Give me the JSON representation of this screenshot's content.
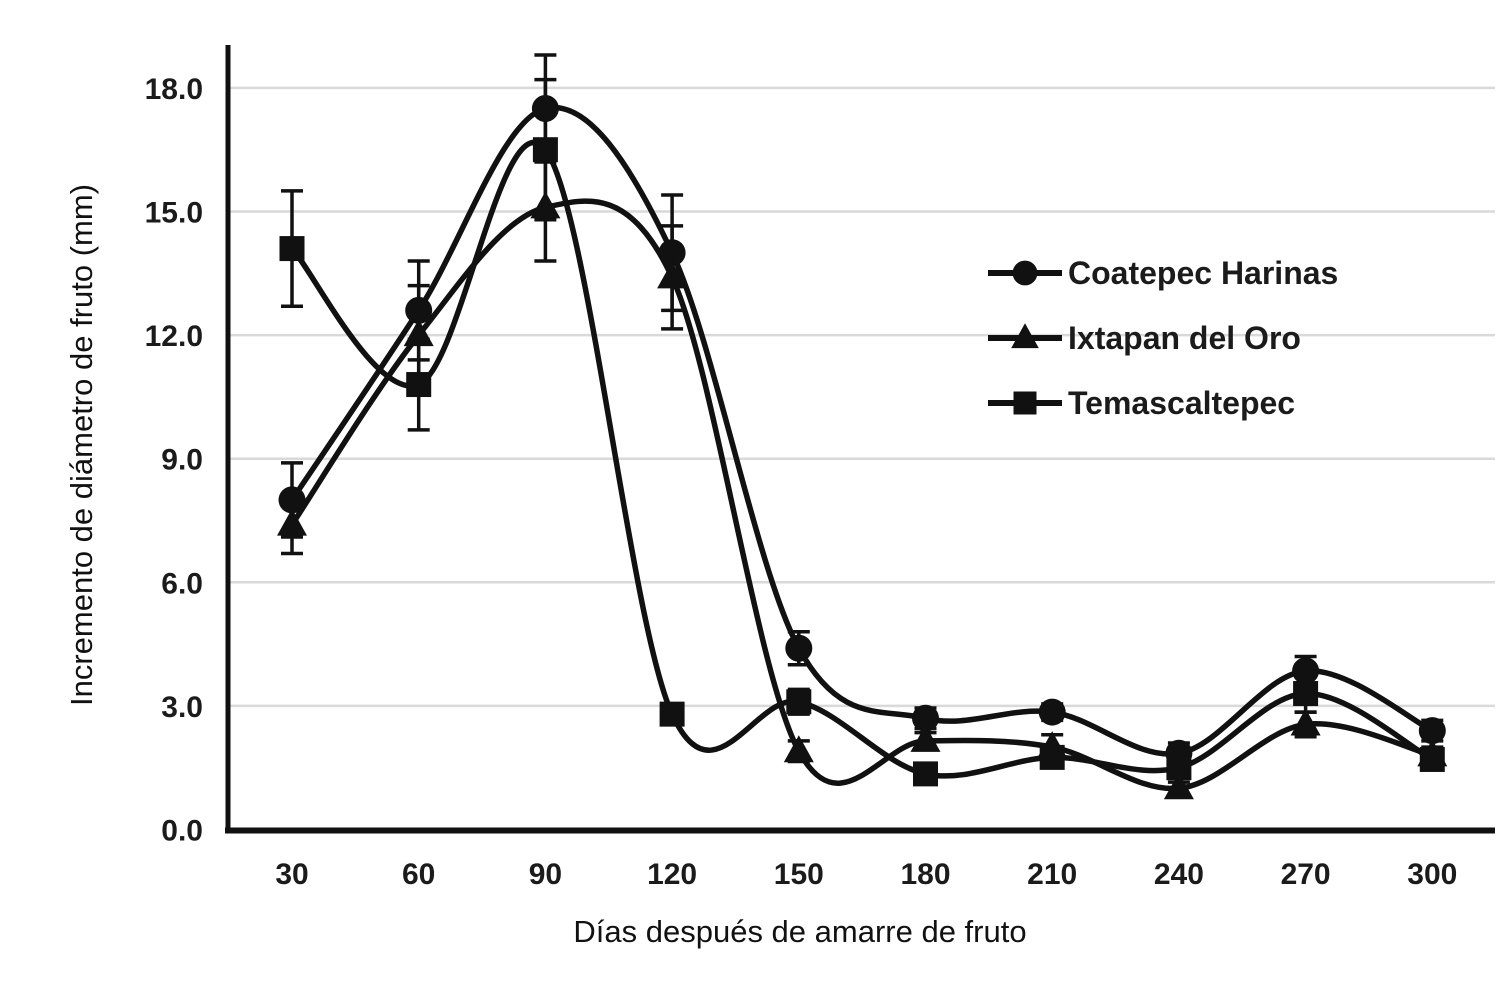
{
  "figure": {
    "background_color": "#ffffff",
    "line_color": "#111111",
    "grid_color": "#d9d9d9",
    "text_color": "#1b1b1b"
  },
  "chart_data": {
    "type": "line",
    "title": "",
    "xlabel": "Días después de amarre de fruto",
    "ylabel": "Incremento de diámetro de fruto (mm)",
    "x": [
      30,
      60,
      90,
      120,
      150,
      180,
      210,
      240,
      270,
      300
    ],
    "x_tick_labels": [
      "30",
      "60",
      "90",
      "120",
      "150",
      "180",
      "210",
      "240",
      "270",
      "300"
    ],
    "y_ticks": [
      0,
      3,
      6,
      9,
      12,
      15,
      18
    ],
    "y_tick_labels": [
      "0.0",
      "3.0",
      "6.0",
      "9.0",
      "12.0",
      "15.0",
      "18.0"
    ],
    "ylim": [
      0,
      19
    ],
    "grid": "horizontal-only",
    "legend_position": "inside-right",
    "error_bars": true,
    "series": [
      {
        "name": "Coatepec Harinas",
        "marker": "circle",
        "color": "#111111",
        "values": [
          8.0,
          12.6,
          17.5,
          14.0,
          4.4,
          2.7,
          2.85,
          1.85,
          3.85,
          2.4
        ],
        "errors": [
          0.9,
          1.2,
          1.3,
          1.4,
          0.4,
          0.25,
          0.2,
          0.25,
          0.35,
          0.25
        ]
      },
      {
        "name": "Ixtapan del Oro",
        "marker": "triangle",
        "color": "#111111",
        "values": [
          7.4,
          12.0,
          15.1,
          13.4,
          1.9,
          2.15,
          2.0,
          1.0,
          2.55,
          1.8
        ],
        "errors": [
          0.7,
          1.2,
          1.3,
          1.25,
          0.25,
          0.2,
          0.3,
          0.15,
          0.3,
          0.2
        ]
      },
      {
        "name": "Temascaltepec",
        "marker": "square",
        "color": "#111111",
        "values": [
          14.1,
          10.8,
          16.5,
          2.8,
          3.1,
          1.35,
          1.75,
          1.5,
          3.3,
          1.7
        ],
        "errors": [
          1.4,
          1.1,
          1.7,
          0.2,
          0.3,
          0.15,
          0.25,
          0.2,
          0.45,
          0.2
        ]
      }
    ]
  }
}
